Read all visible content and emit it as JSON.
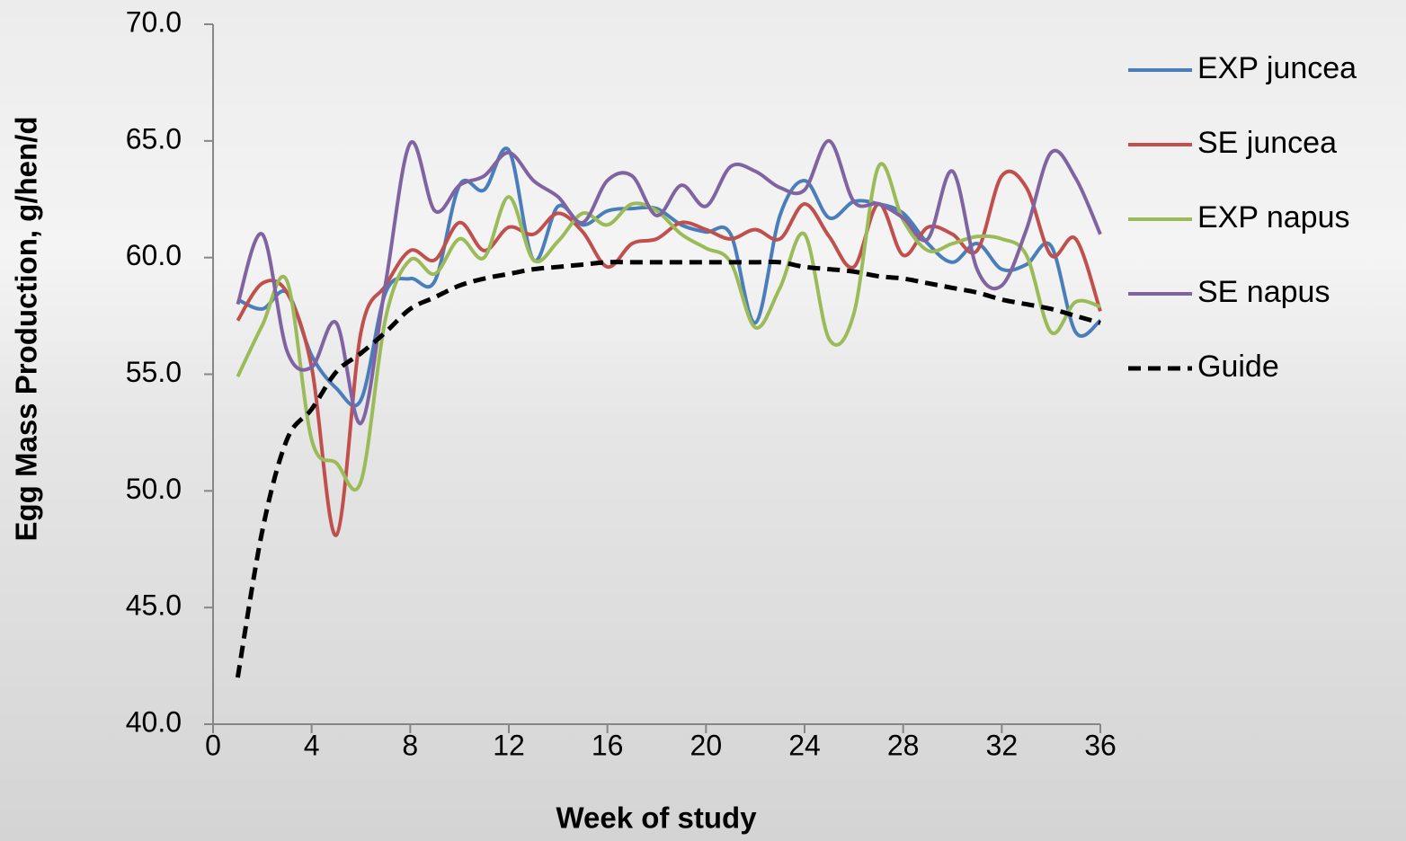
{
  "chart_data": {
    "type": "line",
    "xlabel": "Week of study",
    "ylabel": "Egg Mass Production, g/hen/d",
    "x": [
      1,
      2,
      3,
      4,
      5,
      6,
      7,
      8,
      9,
      10,
      11,
      12,
      13,
      14,
      15,
      16,
      17,
      18,
      19,
      20,
      21,
      22,
      23,
      24,
      25,
      26,
      27,
      28,
      29,
      30,
      31,
      32,
      33,
      34,
      35,
      36
    ],
    "xlim": [
      0,
      36
    ],
    "xticks": [
      0,
      4,
      8,
      12,
      16,
      20,
      24,
      28,
      32,
      36
    ],
    "ylim": [
      40,
      70
    ],
    "yticks": [
      {
        "value": 40,
        "label": "40.0"
      },
      {
        "value": 45,
        "label": "45.0"
      },
      {
        "value": 50,
        "label": "50.0"
      },
      {
        "value": 55,
        "label": "55.0"
      },
      {
        "value": 60,
        "label": "60.0"
      },
      {
        "value": 65,
        "label": "65.0"
      },
      {
        "value": 70,
        "label": "70.0"
      }
    ],
    "smooth": true,
    "legend": "right",
    "series": [
      {
        "name": "EXP juncea",
        "color": "#4a7ebb",
        "dash": "solid",
        "values": [
          58.2,
          57.8,
          58.5,
          55.8,
          54.4,
          53.9,
          58.5,
          59.1,
          59.0,
          63.1,
          62.9,
          64.6,
          59.9,
          62.2,
          61.4,
          62.0,
          62.1,
          62.1,
          61.4,
          61.1,
          61.0,
          57.2,
          61.8,
          63.3,
          61.7,
          62.4,
          62.3,
          61.9,
          60.6,
          59.8,
          60.6,
          59.5,
          59.7,
          60.5,
          56.8,
          57.3
        ]
      },
      {
        "name": "SE juncea",
        "color": "#c0504d",
        "dash": "solid",
        "values": [
          57.3,
          58.9,
          58.5,
          55.3,
          48.1,
          56.8,
          58.8,
          60.3,
          59.9,
          61.5,
          60.3,
          61.3,
          61.0,
          61.9,
          61.1,
          59.6,
          60.6,
          60.8,
          61.5,
          61.2,
          60.8,
          61.2,
          60.8,
          62.3,
          60.9,
          59.6,
          62.3,
          60.1,
          61.3,
          61.0,
          60.3,
          63.5,
          63.0,
          60.1,
          60.8,
          57.7
        ]
      },
      {
        "name": "EXP napus",
        "color": "#9bbb59",
        "dash": "solid",
        "values": [
          54.9,
          57.1,
          59.0,
          52.2,
          51.2,
          50.4,
          57.4,
          59.9,
          59.3,
          60.8,
          60.0,
          62.6,
          59.9,
          60.7,
          61.9,
          61.4,
          62.3,
          62.0,
          61.0,
          60.4,
          59.8,
          57.0,
          58.7,
          61.0,
          56.5,
          57.6,
          63.9,
          61.6,
          60.3,
          60.6,
          60.9,
          60.8,
          60.1,
          56.8,
          58.1,
          57.9
        ]
      },
      {
        "name": "SE napus",
        "color": "#8064a2",
        "dash": "solid",
        "values": [
          58.0,
          61.0,
          56.0,
          55.3,
          57.2,
          52.9,
          58.9,
          64.9,
          62.0,
          63.1,
          63.5,
          64.5,
          63.3,
          62.6,
          61.5,
          63.3,
          63.5,
          61.8,
          63.1,
          62.2,
          63.9,
          63.7,
          63.0,
          62.9,
          65.0,
          62.4,
          62.3,
          61.7,
          60.8,
          63.7,
          59.5,
          58.8,
          61.2,
          64.5,
          63.4,
          61.0
        ]
      },
      {
        "name": "Guide",
        "color": "#000000",
        "dash": "dashed",
        "values": [
          42.0,
          48.3,
          52.2,
          53.5,
          55.1,
          55.9,
          56.8,
          57.8,
          58.3,
          58.8,
          59.1,
          59.3,
          59.5,
          59.6,
          59.7,
          59.8,
          59.8,
          59.8,
          59.8,
          59.8,
          59.8,
          59.8,
          59.8,
          59.6,
          59.5,
          59.4,
          59.2,
          59.1,
          58.9,
          58.7,
          58.5,
          58.2,
          58.0,
          57.8,
          57.5,
          57.2
        ]
      }
    ]
  }
}
